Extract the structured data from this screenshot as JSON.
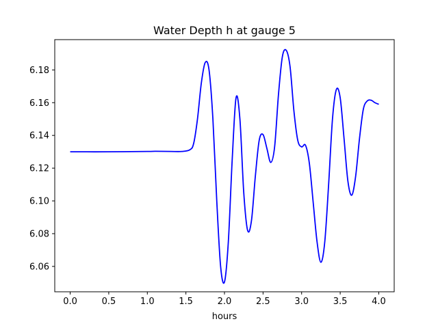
{
  "chart_data": {
    "type": "line",
    "title": "Water Depth h at gauge 5",
    "xlabel": "hours",
    "ylabel": "",
    "xlim": [
      -0.2,
      4.2
    ],
    "ylim": [
      6.0445,
      6.1985
    ],
    "grid": false,
    "x_ticks": [
      0.0,
      0.5,
      1.0,
      1.5,
      2.0,
      2.5,
      3.0,
      3.5,
      4.0
    ],
    "x_tick_labels": [
      "0.0",
      "0.5",
      "1.0",
      "1.5",
      "2.0",
      "2.5",
      "3.0",
      "3.5",
      "4.0"
    ],
    "y_ticks": [
      6.06,
      6.08,
      6.1,
      6.12,
      6.14,
      6.16,
      6.18
    ],
    "y_tick_labels": [
      "6.06",
      "6.08",
      "6.10",
      "6.12",
      "6.14",
      "6.16",
      "6.18"
    ],
    "series": [
      {
        "color": "#0000ff",
        "x": [
          0.0,
          0.5,
          1.0,
          1.1,
          1.3,
          1.45,
          1.55,
          1.6,
          1.65,
          1.7,
          1.75,
          1.8,
          1.85,
          1.9,
          1.95,
          2.0,
          2.05,
          2.1,
          2.15,
          2.2,
          2.25,
          2.3,
          2.35,
          2.4,
          2.45,
          2.5,
          2.55,
          2.6,
          2.65,
          2.7,
          2.75,
          2.8,
          2.85,
          2.9,
          2.95,
          3.0,
          3.05,
          3.1,
          3.15,
          3.2,
          3.25,
          3.3,
          3.35,
          3.4,
          3.45,
          3.5,
          3.55,
          3.6,
          3.65,
          3.7,
          3.75,
          3.8,
          3.85,
          3.9,
          3.95,
          4.0
        ],
        "y": [
          6.13,
          6.13,
          6.1302,
          6.1303,
          6.1302,
          6.1302,
          6.1312,
          6.135,
          6.15,
          6.172,
          6.1845,
          6.18,
          6.15,
          6.1,
          6.06,
          6.0505,
          6.075,
          6.125,
          6.163,
          6.15,
          6.105,
          6.082,
          6.088,
          6.115,
          6.137,
          6.1405,
          6.132,
          6.1235,
          6.133,
          6.165,
          6.188,
          6.192,
          6.182,
          6.155,
          6.137,
          6.133,
          6.134,
          6.123,
          6.099,
          6.075,
          6.0625,
          6.075,
          6.11,
          6.15,
          6.168,
          6.163,
          6.138,
          6.112,
          6.1035,
          6.115,
          6.138,
          6.156,
          6.161,
          6.1615,
          6.16,
          6.159
        ]
      }
    ]
  }
}
